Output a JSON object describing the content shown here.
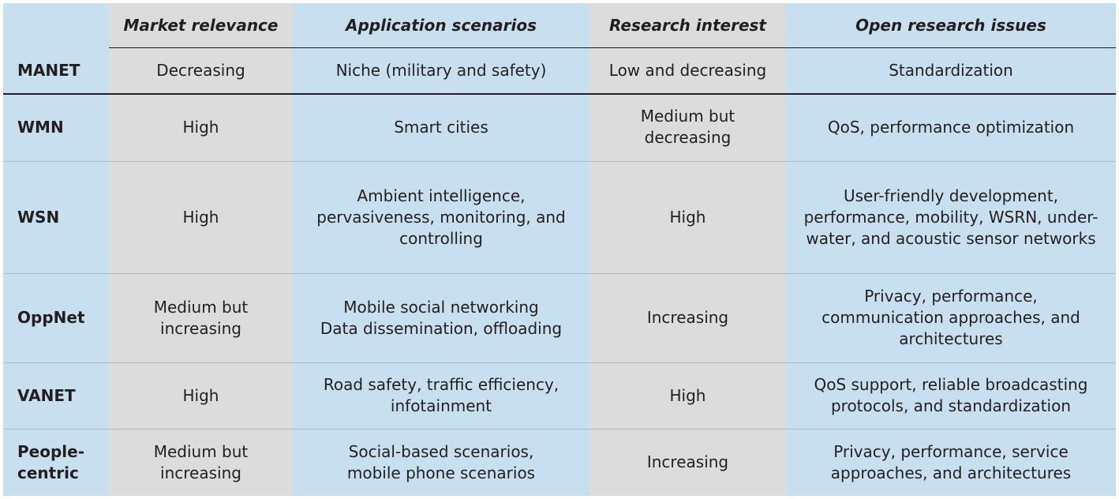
{
  "colors": {
    "blue_band": "#c8dff0",
    "gray_band": "#dcdcdd",
    "rule_dark": "#231f20",
    "rule_light": "#a9bfd0",
    "text": "#231f20"
  },
  "table": {
    "columns": [
      "Market relevance",
      "Application scenarios",
      "Research interest",
      "Open research issues"
    ],
    "rows": [
      {
        "name": "MANET",
        "market": "Decreasing",
        "scenarios": "Niche (military and safety)",
        "interest": "Low and decreasing",
        "issues": "Standardization"
      },
      {
        "name": "WMN",
        "market": "High",
        "scenarios": "Smart cities",
        "interest": "Medium but\ndecreasing",
        "issues": "QoS, performance optimization"
      },
      {
        "name": "WSN",
        "market": "High",
        "scenarios": "Ambient intelligence,\npervasiveness, monitoring, and\ncontrolling",
        "interest": "High",
        "issues": "User-friendly development,\nperformance, mobility, WSRN, under-\nwater, and acoustic sensor networks"
      },
      {
        "name": "OppNet",
        "market": "Medium but\nincreasing",
        "scenarios": "Mobile social networking\nData dissemination, offloading",
        "interest": "Increasing",
        "issues": "Privacy, performance,\ncommunication approaches, and\narchitectures"
      },
      {
        "name": "VANET",
        "market": "High",
        "scenarios": "Road safety, traffic efficiency,\ninfotainment",
        "interest": "High",
        "issues": "QoS support, reliable broadcasting\nprotocols, and standardization"
      },
      {
        "name": "People-\ncentric",
        "market": "Medium but\nincreasing",
        "scenarios": "Social-based scenarios,\nmobile phone scenarios",
        "interest": "Increasing",
        "issues": "Privacy, performance, service\napproaches, and architectures"
      }
    ]
  }
}
